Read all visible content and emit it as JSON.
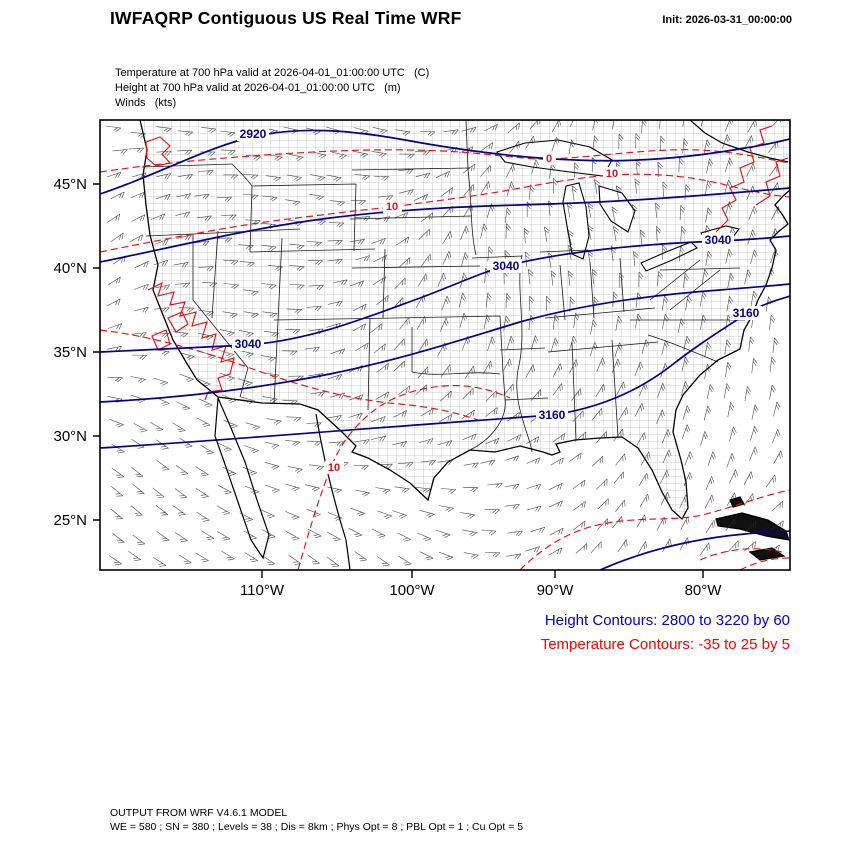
{
  "header": {
    "title": "IWFAQRP Contiguous US Real Time WRF",
    "init": "Init: 2026-03-31_00:00:00"
  },
  "subtitle": {
    "temperature": "Temperature at 700 hPa valid at 2026-04-01_01:00:00 UTC   (C)",
    "height": "Height at 700 hPa valid at 2026-04-01_01:00:00 UTC   (m)",
    "winds": "Winds   (kts)"
  },
  "map": {
    "y_ticks": [
      "45°N",
      "40°N",
      "35°N",
      "30°N",
      "25°N"
    ],
    "x_ticks": [
      "110°W",
      "100°W",
      "90°W",
      "80°W"
    ],
    "height_contour_range": {
      "from": 2800,
      "to": 3220,
      "by": 60
    },
    "temperature_contour_range": {
      "from": -35,
      "to": 25,
      "by": 5
    },
    "height_labels": [
      "2920",
      "3040",
      "3040",
      "3040",
      "3160",
      "3160"
    ],
    "temp_labels": [
      "0",
      "10",
      "10",
      "10"
    ]
  },
  "legend": {
    "height": "Height Contours: 2800 to 3220 by 60",
    "temperature": "Temperature Contours: -35 to 25 by 5"
  },
  "footer": {
    "line1": "OUTPUT FROM WRF V4.6.1 MODEL",
    "line2": "WE = 580 ; SN = 380 ; Levels = 38 ; Dis = 8km ; Phys Opt = 8 ; PBL Opt = 1 ; Cu Opt = 5"
  },
  "colors": {
    "height_contour": "#00008b",
    "temperature_contour": "#e31212",
    "legend_height_text": "#0000cd",
    "legend_temperature_text": "#ff0000"
  }
}
